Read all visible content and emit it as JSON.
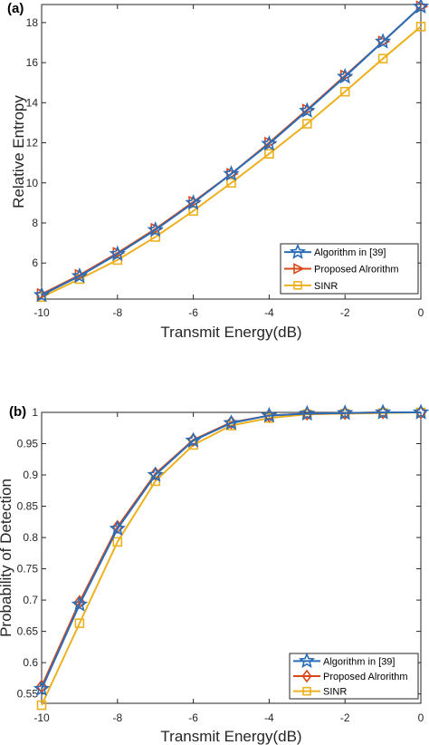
{
  "colors": {
    "algorithm": "#2a6cb6",
    "proposed": "#d84a1b",
    "sinr": "#edb120",
    "axis": "#262626"
  },
  "chart_data": [
    {
      "type": "line",
      "panel_label": "(a)",
      "xlabel": "Transmit Energy(dB)",
      "ylabel": "Relative Entropy",
      "x": [
        -10,
        -9,
        -8,
        -7,
        -6,
        -5,
        -4,
        -3,
        -2,
        -1,
        0
      ],
      "xticks": [
        -10,
        -8,
        -6,
        -4,
        -2,
        0
      ],
      "yticks": [
        6,
        8,
        10,
        12,
        14,
        16,
        18
      ],
      "xlim": [
        -10,
        0
      ],
      "ylim": [
        4.2,
        18.9
      ],
      "grid": false,
      "legend_position": "bottom-right",
      "series": [
        {
          "name": "Algorithm in [39]",
          "marker": "star",
          "color_key": "algorithm",
          "values": [
            4.4,
            5.35,
            6.45,
            7.65,
            9.0,
            10.45,
            11.95,
            13.6,
            15.3,
            17.05,
            18.8
          ]
        },
        {
          "name": "Proposed Alrorithm",
          "marker": "triangle-right",
          "color_key": "proposed",
          "values": [
            4.45,
            5.4,
            6.5,
            7.7,
            9.05,
            10.45,
            12.0,
            13.65,
            15.35,
            17.05,
            18.8
          ]
        },
        {
          "name": "SINR",
          "marker": "square",
          "color_key": "sinr",
          "values": [
            4.3,
            5.2,
            6.15,
            7.3,
            8.6,
            10.0,
            11.45,
            12.95,
            14.55,
            16.2,
            17.8
          ]
        }
      ]
    },
    {
      "type": "line",
      "panel_label": "(b)",
      "xlabel": "Transmit Energy(dB)",
      "ylabel": "Probability of Detection",
      "x": [
        -10,
        -9,
        -8,
        -7,
        -6,
        -5,
        -4,
        -3,
        -2,
        -1,
        0
      ],
      "xticks": [
        -10,
        -8,
        -6,
        -4,
        -2,
        0
      ],
      "yticks": [
        0.55,
        0.6,
        0.65,
        0.7,
        0.75,
        0.8,
        0.85,
        0.9,
        0.95,
        1
      ],
      "xlim": [
        -10,
        0
      ],
      "ylim": [
        0.535,
        1.0
      ],
      "grid": false,
      "legend_position": "bottom-right",
      "series": [
        {
          "name": "Algorithm in [39]",
          "marker": "star",
          "color_key": "algorithm",
          "values": [
            0.558,
            0.693,
            0.814,
            0.9,
            0.955,
            0.983,
            0.995,
            0.998,
            0.999,
            1.0,
            1.0
          ]
        },
        {
          "name": "Proposed Alrorithm",
          "marker": "diamond",
          "color_key": "proposed",
          "values": [
            0.562,
            0.697,
            0.817,
            0.902,
            0.956,
            0.984,
            0.995,
            0.998,
            0.999,
            1.0,
            1.0
          ]
        },
        {
          "name": "SINR",
          "marker": "square",
          "color_key": "sinr",
          "values": [
            0.532,
            0.663,
            0.793,
            0.89,
            0.948,
            0.979,
            0.991,
            0.997,
            0.998,
            0.999,
            1.0
          ]
        }
      ]
    }
  ]
}
